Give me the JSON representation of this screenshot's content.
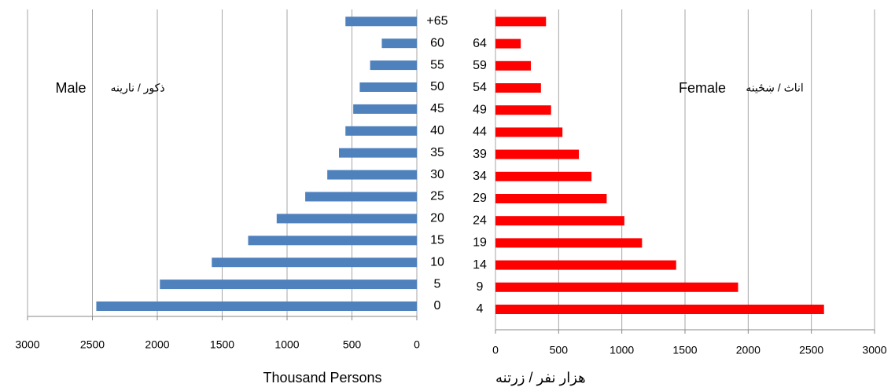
{
  "chart_data": [
    {
      "type": "hbar",
      "title": "Male",
      "subtitle": "ذکور / نارینه",
      "xlabel": "Thousand Persons",
      "categories": [
        "0",
        "5",
        "10",
        "15",
        "20",
        "25",
        "30",
        "35",
        "40",
        "45",
        "50",
        "55",
        "60",
        "+65"
      ],
      "values": [
        2470,
        1980,
        1580,
        1300,
        1080,
        860,
        690,
        600,
        550,
        490,
        440,
        360,
        270,
        550
      ],
      "color": "#4f81bd",
      "xlim": [
        3000,
        0
      ],
      "xticks": [
        0,
        500,
        1000,
        1500,
        2000,
        2500,
        3000
      ],
      "grid": true
    },
    {
      "type": "hbar",
      "title": "Female",
      "subtitle": "اناث / ښځینه",
      "xlabel": "هزار نفر / زرتنه",
      "categories": [
        "4",
        "9",
        "14",
        "19",
        "24",
        "29",
        "34",
        "39",
        "44",
        "49",
        "54",
        "59",
        "64",
        null
      ],
      "values": [
        2600,
        1920,
        1430,
        1160,
        1020,
        880,
        760,
        660,
        530,
        440,
        360,
        280,
        200,
        400
      ],
      "color": "#ff0000",
      "xlim": [
        0,
        3000
      ],
      "xticks": [
        0,
        500,
        1000,
        1500,
        2000,
        2500,
        3000
      ],
      "grid": true
    }
  ]
}
